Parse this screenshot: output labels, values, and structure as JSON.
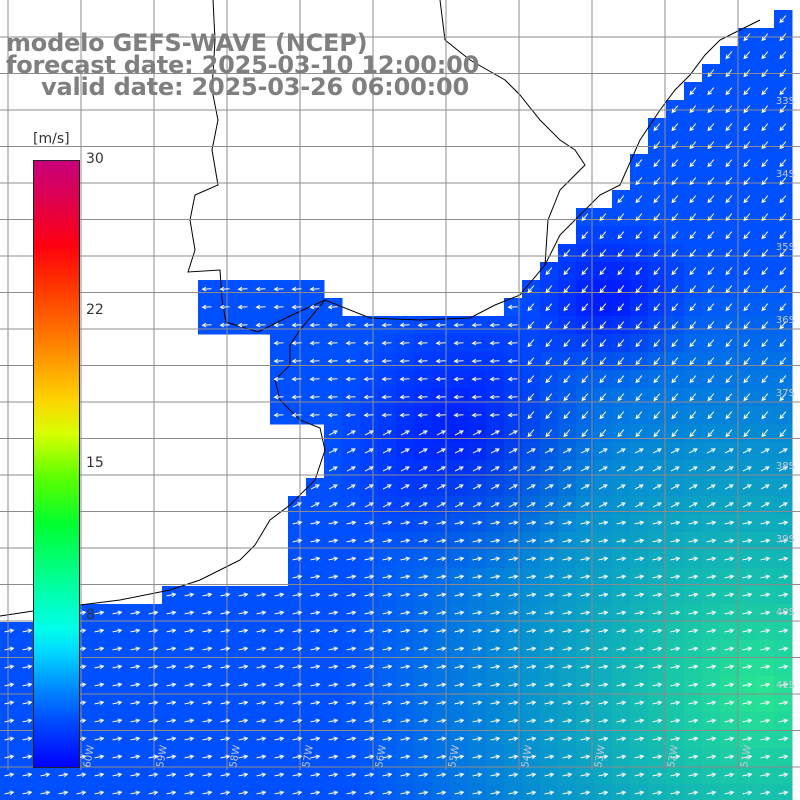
{
  "title": {
    "model": "modelo GEFS-WAVE (NCEP)",
    "forecast": "forecast date: 2025-03-10 12:00:00",
    "valid": "valid date: 2025-03-26 06:00:00"
  },
  "colorbar": {
    "unit": "[m/s]",
    "ticks": [
      "30",
      "22",
      "15",
      "8"
    ],
    "tick_values": [
      30,
      22,
      15,
      8
    ],
    "range": [
      0,
      30
    ]
  },
  "grid": {
    "lat_labels": [
      "33S",
      "34S",
      "35S",
      "36S",
      "37S",
      "38S",
      "39S",
      "40S",
      "41S"
    ],
    "lon_labels": [
      "60W",
      "59W",
      "58W",
      "57W",
      "56W",
      "55W",
      "54W",
      "53W",
      "52W",
      "51W"
    ]
  },
  "colors": {
    "land": "#ffffff",
    "coast": "#000000",
    "grid": "#8c8c8c",
    "arrows": "#ffffff",
    "title": "#7f7f7f"
  }
}
